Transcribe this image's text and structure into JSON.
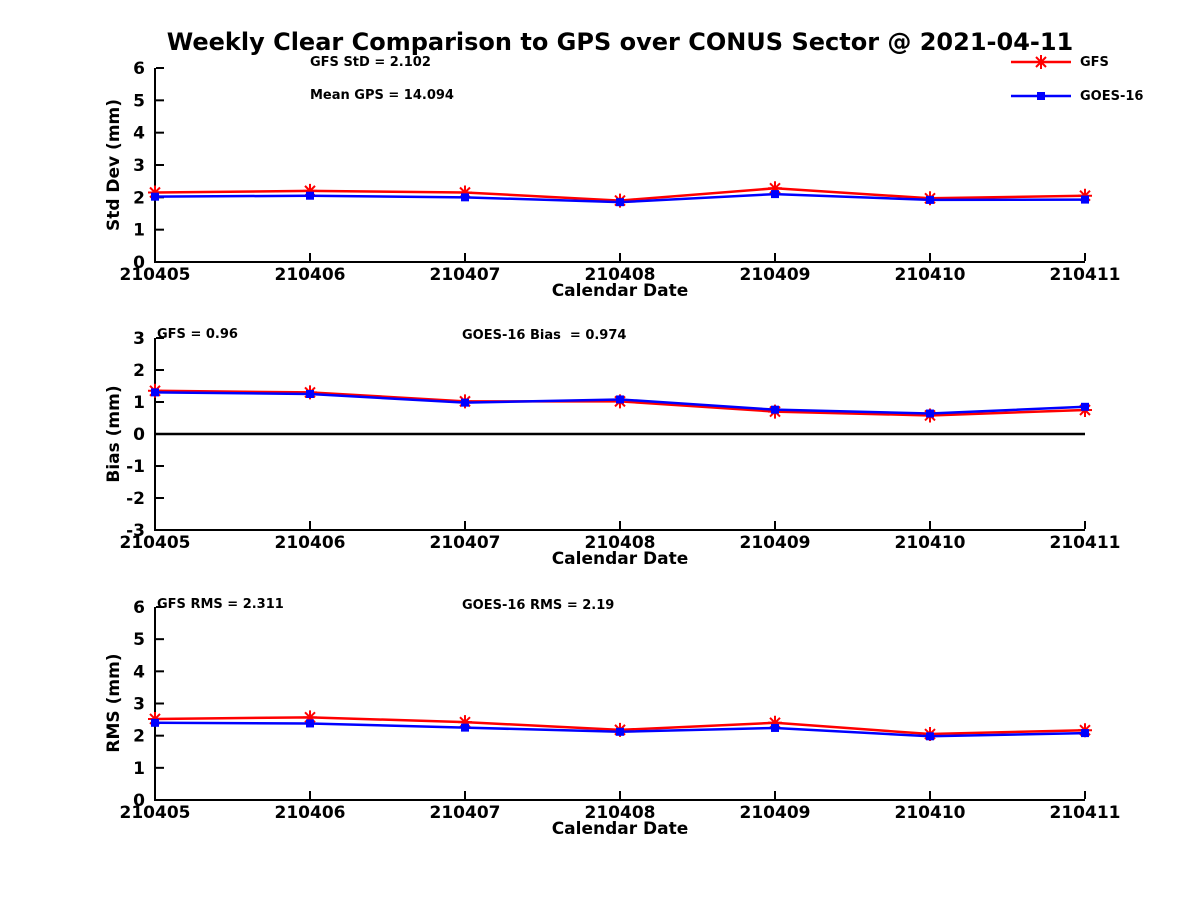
{
  "title": "Weekly Clear Comparison to GPS over CONUS Sector @ 2021-04-11",
  "colors": {
    "gfs": "#ff0000",
    "goes16": "#0000ff",
    "axis": "#000000",
    "background": "#ffffff"
  },
  "legend": {
    "entries": [
      {
        "label": "GFS",
        "color": "#ff0000",
        "marker": "asterisk"
      },
      {
        "label": "GOES-16",
        "color": "#0000ff",
        "marker": "square"
      }
    ]
  },
  "categories": [
    "210405",
    "210406",
    "210407",
    "210408",
    "210409",
    "210410",
    "210411"
  ],
  "chart_data": [
    {
      "type": "line",
      "ylabel": "Std Dev (mm)",
      "xlabel": "Calendar Date",
      "ylim": [
        0,
        6
      ],
      "yticks": [
        0,
        1,
        2,
        3,
        4,
        5,
        6
      ],
      "grid": false,
      "legend_position": "top-right-outside",
      "annotations": [
        {
          "text": "GFS StD = 2.102"
        },
        {
          "text": "Mean GPS = 14.094"
        }
      ],
      "series": [
        {
          "name": "GFS",
          "color": "#ff0000",
          "marker": "asterisk",
          "values": [
            2.15,
            2.2,
            2.15,
            1.9,
            2.28,
            1.97,
            2.05
          ]
        },
        {
          "name": "GOES-16",
          "color": "#0000ff",
          "marker": "square",
          "values": [
            2.02,
            2.05,
            2.0,
            1.85,
            2.1,
            1.92,
            1.93
          ]
        }
      ]
    },
    {
      "type": "line",
      "ylabel": "Bias (mm)",
      "xlabel": "Calendar Date",
      "ylim": [
        -3,
        3
      ],
      "yticks": [
        -3,
        -2,
        -1,
        0,
        1,
        2,
        3
      ],
      "zero_line": true,
      "grid": false,
      "annotations": [
        {
          "text": "GFS = 0.96"
        },
        {
          "text": "GOES-16 Bias  = 0.974"
        }
      ],
      "series": [
        {
          "name": "GFS",
          "color": "#ff0000",
          "marker": "asterisk",
          "values": [
            1.35,
            1.3,
            1.02,
            1.02,
            0.7,
            0.58,
            0.75
          ]
        },
        {
          "name": "GOES-16",
          "color": "#0000ff",
          "marker": "square",
          "values": [
            1.3,
            1.25,
            0.98,
            1.08,
            0.76,
            0.64,
            0.85
          ]
        }
      ]
    },
    {
      "type": "line",
      "ylabel": "RMS (mm)",
      "xlabel": "Calendar Date",
      "ylim": [
        0,
        6
      ],
      "yticks": [
        0,
        1,
        2,
        3,
        4,
        5,
        6
      ],
      "grid": false,
      "annotations": [
        {
          "text": "GFS RMS = 2.311"
        },
        {
          "text": "GOES-16 RMS = 2.19"
        }
      ],
      "series": [
        {
          "name": "GFS",
          "color": "#ff0000",
          "marker": "asterisk",
          "values": [
            2.52,
            2.57,
            2.42,
            2.18,
            2.4,
            2.05,
            2.17
          ]
        },
        {
          "name": "GOES-16",
          "color": "#0000ff",
          "marker": "square",
          "values": [
            2.4,
            2.38,
            2.25,
            2.12,
            2.24,
            1.98,
            2.08
          ]
        }
      ]
    }
  ]
}
